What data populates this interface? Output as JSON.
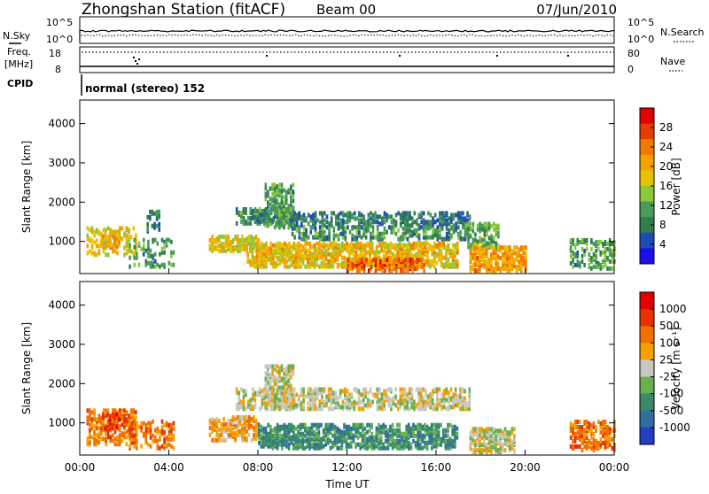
{
  "header": {
    "station": "Zhongshan Station (fitACF)",
    "beam": "Beam 00",
    "date": "07/Jun/2010"
  },
  "top_panels": {
    "nsky_label": "N.Sky",
    "nsky_ticks": [
      "10^5",
      "10^0"
    ],
    "nsearch_label": "N.Search",
    "nsearch_ticks": [
      "10^5",
      "10^0"
    ],
    "freq_label": "Freq.",
    "freq_unit": "[MHz]",
    "freq_ticks": [
      "18",
      "8"
    ],
    "nave_label": "Nave",
    "nave_ticks": [
      "80",
      "0"
    ],
    "cpid_label": "CPID",
    "cpid_text": "normal (stereo) 152"
  },
  "chart_data": [
    {
      "type": "heatmap",
      "quantity": "Power",
      "ylabel": "Slant Range [km]",
      "ylim": [
        180,
        4600
      ],
      "y_ticks": [
        "4000",
        "3000",
        "2000",
        "1000"
      ],
      "xlim": [
        "00:00",
        "24:00"
      ],
      "colorbar": {
        "label": "Power [dB]",
        "ticks": [
          "28",
          "24",
          "20",
          "16",
          "12",
          "8",
          "4"
        ],
        "range": [
          0,
          32
        ],
        "colors": [
          "#1a10f0",
          "#1e4cb4",
          "#2e7e4e",
          "#4a9a5a",
          "#8ac83a",
          "#e6c200",
          "#f5a100",
          "#f07a00",
          "#e63c00",
          "#e00000"
        ]
      },
      "regions": [
        {
          "t": [
            0.3,
            2.5
          ],
          "r": [
            600,
            1300
          ],
          "level": 18,
          "density": 0.35
        },
        {
          "t": [
            1.0,
            1.8
          ],
          "r": [
            800,
            1200
          ],
          "level": 20,
          "density": 0.5
        },
        {
          "t": [
            2.2,
            4.2
          ],
          "r": [
            300,
            1000
          ],
          "level": 10,
          "density": 0.2
        },
        {
          "t": [
            3.0,
            3.6
          ],
          "r": [
            1200,
            1700
          ],
          "level": 8,
          "density": 0.4
        },
        {
          "t": [
            5.8,
            8.0
          ],
          "r": [
            700,
            1100
          ],
          "level": 18,
          "density": 0.55
        },
        {
          "t": [
            7.0,
            9.5
          ],
          "r": [
            1400,
            1800
          ],
          "level": 8,
          "density": 0.55
        },
        {
          "t": [
            8.3,
            9.6
          ],
          "r": [
            1300,
            2400
          ],
          "level": 10,
          "density": 0.5
        },
        {
          "t": [
            9.5,
            17.5
          ],
          "r": [
            1300,
            1700
          ],
          "level": 7,
          "density": 0.45
        },
        {
          "t": [
            9.5,
            17.5
          ],
          "r": [
            1000,
            1300
          ],
          "level": 9,
          "density": 0.35
        },
        {
          "t": [
            7.5,
            17.0
          ],
          "r": [
            300,
            900
          ],
          "level": 19,
          "density": 0.6
        },
        {
          "t": [
            12.0,
            15.5
          ],
          "r": [
            200,
            500
          ],
          "level": 26,
          "density": 0.55
        },
        {
          "t": [
            17.5,
            20.0
          ],
          "r": [
            200,
            800
          ],
          "level": 22,
          "density": 0.6
        },
        {
          "t": [
            17.3,
            18.8
          ],
          "r": [
            800,
            1400
          ],
          "level": 12,
          "density": 0.4
        },
        {
          "t": [
            22.0,
            24.0
          ],
          "r": [
            250,
            1000
          ],
          "level": 10,
          "density": 0.4
        }
      ]
    },
    {
      "type": "heatmap",
      "quantity": "Velocity",
      "ylabel": "Slant Range [km]",
      "ylim": [
        180,
        4600
      ],
      "y_ticks": [
        "4000",
        "3000",
        "2000",
        "1000"
      ],
      "xlim": [
        "00:00",
        "24:00"
      ],
      "x_ticks": [
        "00:00",
        "04:00",
        "08:00",
        "12:00",
        "16:00",
        "20:00",
        "00:00"
      ],
      "xlabel": "Time UT",
      "colorbar": {
        "label": "Velocity [m s⁻¹]",
        "ticks": [
          "1000",
          "500",
          "100",
          "25",
          "-25",
          "-100",
          "-500",
          "-1000"
        ],
        "colors": [
          "#2040c0",
          "#2e6ea0",
          "#3a8a6a",
          "#66b050",
          "#c8c8c0",
          "#f5a000",
          "#f07000",
          "#e83000",
          "#e00000"
        ]
      },
      "regions": [
        {
          "t": [
            0.3,
            2.5
          ],
          "r": [
            400,
            1300
          ],
          "cls": 6,
          "density": 0.45
        },
        {
          "t": [
            1.0,
            1.8
          ],
          "r": [
            800,
            1200
          ],
          "cls": 7,
          "density": 0.5
        },
        {
          "t": [
            2.2,
            4.2
          ],
          "r": [
            300,
            1000
          ],
          "cls": 6,
          "density": 0.3
        },
        {
          "t": [
            5.8,
            8.0
          ],
          "r": [
            500,
            1100
          ],
          "cls": 5,
          "density": 0.5
        },
        {
          "t": [
            7.0,
            17.5
          ],
          "r": [
            1300,
            1800
          ],
          "cls": 4,
          "density": 0.45
        },
        {
          "t": [
            8.3,
            9.6
          ],
          "r": [
            1300,
            2400
          ],
          "cls": 4,
          "density": 0.5
        },
        {
          "t": [
            8.0,
            17.0
          ],
          "r": [
            300,
            900
          ],
          "cls": 2,
          "density": 0.55
        },
        {
          "t": [
            17.5,
            19.5
          ],
          "r": [
            200,
            800
          ],
          "cls": 4,
          "density": 0.6
        },
        {
          "t": [
            22.0,
            24.0
          ],
          "r": [
            250,
            1000
          ],
          "cls": 6,
          "density": 0.4
        }
      ]
    }
  ]
}
